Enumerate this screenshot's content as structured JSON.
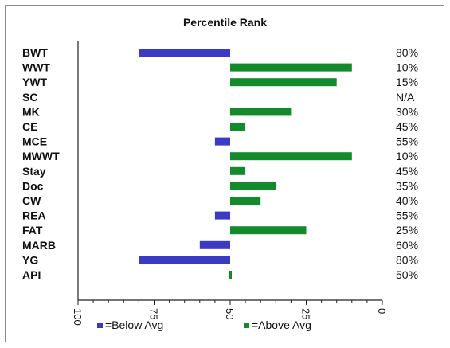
{
  "chart_data": {
    "type": "bar",
    "orientation": "horizontal-diverging",
    "title": "Percentile Rank",
    "baseline": 50,
    "xlim": [
      100,
      0
    ],
    "x_ticks": [
      "100",
      "75",
      "50",
      "25",
      "0"
    ],
    "categories": [
      "BWT",
      "WWT",
      "YWT",
      "SC",
      "MK",
      "CE",
      "MCE",
      "MWWT",
      "Stay",
      "Doc",
      "CW",
      "REA",
      "FAT",
      "MARB",
      "YG",
      "API"
    ],
    "values": [
      80,
      10,
      15,
      null,
      30,
      45,
      55,
      10,
      45,
      35,
      40,
      55,
      25,
      60,
      80,
      50
    ],
    "percent_labels": [
      "80%",
      "10%",
      "15%",
      "N/A",
      "30%",
      "45%",
      "55%",
      "10%",
      "45%",
      "35%",
      "40%",
      "55%",
      "25%",
      "60%",
      "80%",
      "50%"
    ],
    "legend": [
      {
        "label": "=Below Avg",
        "color": "#3a3ac4"
      },
      {
        "label": "=Above Avg",
        "color": "#138a2c"
      }
    ],
    "legend_position": "bottom",
    "colors": {
      "below": "#3a3ac4",
      "above": "#138a2c"
    }
  }
}
